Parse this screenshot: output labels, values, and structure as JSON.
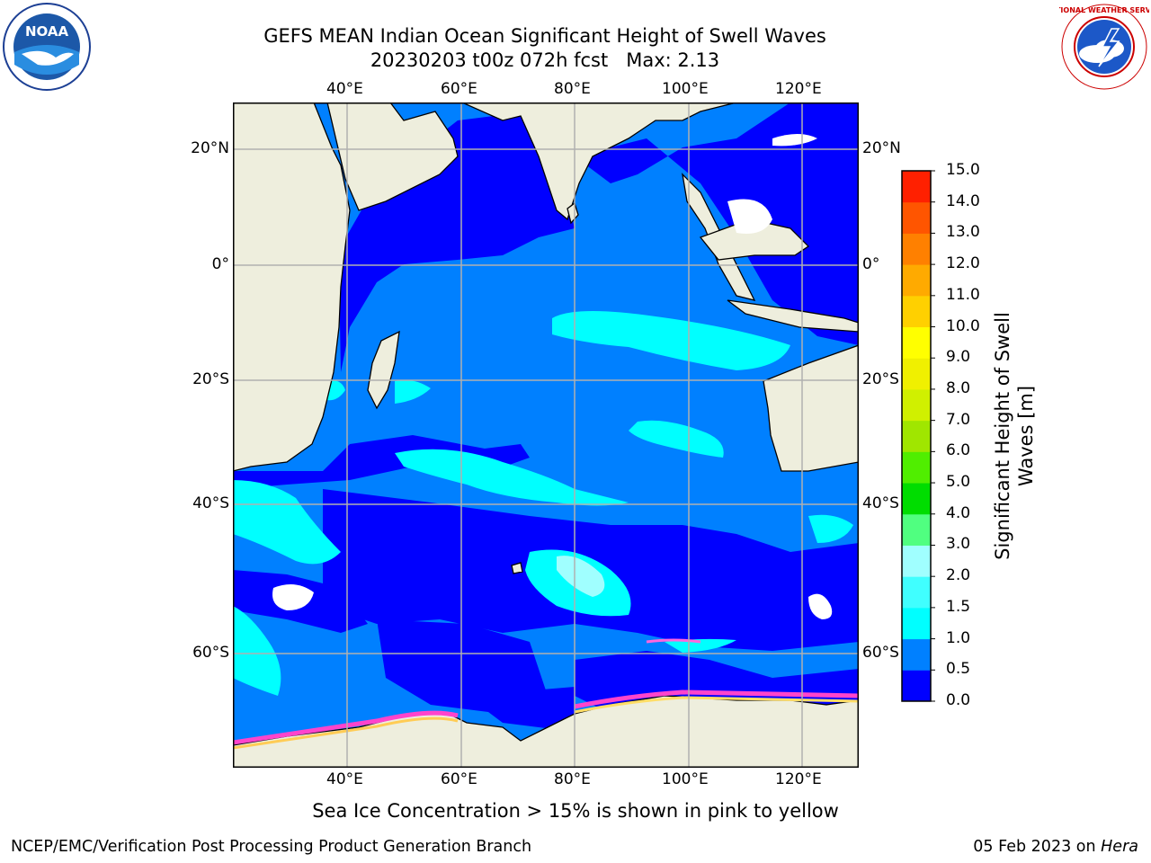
{
  "header": {
    "title_line1": "GEFS MEAN Indian Ocean Significant Height of Swell Waves",
    "title_line2": "20230203 t00z 072h fcst   Max: 2.13"
  },
  "logos": {
    "left_text": "NOAA",
    "left_ring_text": "NATIONAL OCEANIC AND ATMOSPHERIC ADMINISTRATION · U.S. DEPARTMENT OF COMMERCE",
    "right_ring_text": "NATIONAL WEATHER SERVICE"
  },
  "map": {
    "lon_ticks_top": [
      "40°E",
      "60°E",
      "80°E",
      "100°E",
      "120°E"
    ],
    "lon_ticks_bottom": [
      "40°E",
      "60°E",
      "80°E",
      "100°E",
      "120°E"
    ],
    "lat_ticks_left": [
      "20°N",
      "0°",
      "20°S",
      "40°S",
      "60°S"
    ],
    "lat_ticks_right": [
      "20°N",
      "0°",
      "20°S",
      "40°S",
      "60°S"
    ],
    "extent": {
      "lon_min": 20,
      "lon_max": 130,
      "lat_min": -70,
      "lat_max": 25
    },
    "colors": {
      "land": "#eeeedd",
      "ocean_default": "#0080ff"
    }
  },
  "colorbar": {
    "label": "Significant Height of Swell Waves [m]",
    "ticks": [
      "0.0",
      "0.5",
      "1.0",
      "1.5",
      "2.0",
      "3.0",
      "4.0",
      "5.0",
      "6.0",
      "7.0",
      "8.0",
      "9.0",
      "10.0",
      "11.0",
      "12.0",
      "13.0",
      "14.0",
      "15.0"
    ],
    "colors": [
      "#0000ff",
      "#0080ff",
      "#00ffff",
      "#40ffff",
      "#a0ffff",
      "#50ff80",
      "#00dd00",
      "#50ee00",
      "#a0e600",
      "#d0f000",
      "#f0f000",
      "#ffff00",
      "#ffd000",
      "#ffaa00",
      "#ff8000",
      "#ff5500",
      "#ff2000",
      "#ff0000"
    ]
  },
  "note": "Sea Ice Concentration > 15% is shown in pink to yellow",
  "footer": {
    "left": "NCEP/EMC/Verification Post Processing Product Generation Branch",
    "right_date": "05 Feb 2023 on ",
    "right_host": "Hera"
  }
}
